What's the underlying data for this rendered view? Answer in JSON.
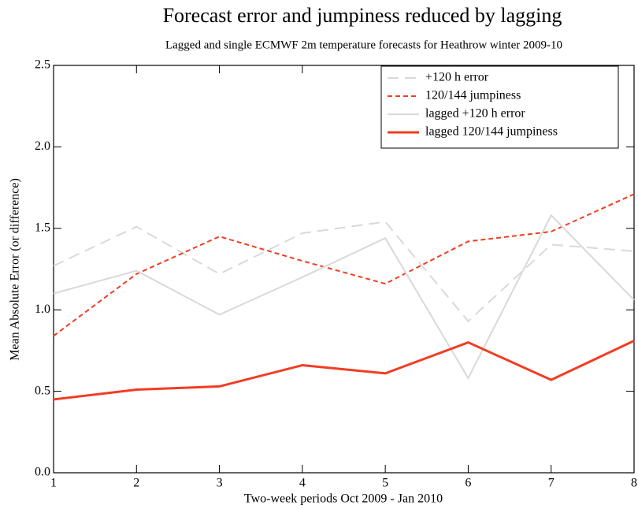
{
  "chart_data": {
    "type": "line",
    "title": "Forecast error and jumpiness reduced by lagging",
    "subtitle": "Lagged and single ECMWF 2m temperature forecasts for Heathrow winter 2009-10",
    "xlabel": "Two-week periods Oct 2009 - Jan 2010",
    "ylabel": "Mean Absolute Error (or difference)",
    "x": [
      1,
      2,
      3,
      4,
      5,
      6,
      7,
      8
    ],
    "series": [
      {
        "name": "+120 h error",
        "color": "#d9d9d9",
        "style": "dashed",
        "values": [
          1.27,
          1.51,
          1.22,
          1.47,
          1.54,
          0.93,
          1.4,
          1.36
        ]
      },
      {
        "name": "120/144 jumpiness",
        "color": "#f23c22",
        "style": "dashed",
        "values": [
          0.84,
          1.22,
          1.45,
          1.3,
          1.16,
          1.42,
          1.48,
          1.71
        ]
      },
      {
        "name": "lagged +120 h error",
        "color": "#d9d9d9",
        "style": "solid",
        "values": [
          1.1,
          1.24,
          0.97,
          1.2,
          1.44,
          0.58,
          1.58,
          1.06
        ]
      },
      {
        "name": "lagged 120/144 jumpiness",
        "color": "#f23c22",
        "style": "solid",
        "values": [
          0.45,
          0.51,
          0.53,
          0.66,
          0.61,
          0.8,
          0.57,
          0.81
        ]
      }
    ],
    "xlim": [
      1,
      8
    ],
    "xticks": [
      1,
      2,
      3,
      4,
      5,
      6,
      7,
      8
    ],
    "ylim": [
      0,
      2.5
    ],
    "yticks": [
      {
        "value": 0,
        "label": "0.0"
      },
      0.5,
      {
        "value": 1,
        "label": "1.0"
      },
      1.5,
      {
        "value": 2,
        "label": "2.0"
      },
      2.5
    ],
    "legend": "upper right"
  }
}
